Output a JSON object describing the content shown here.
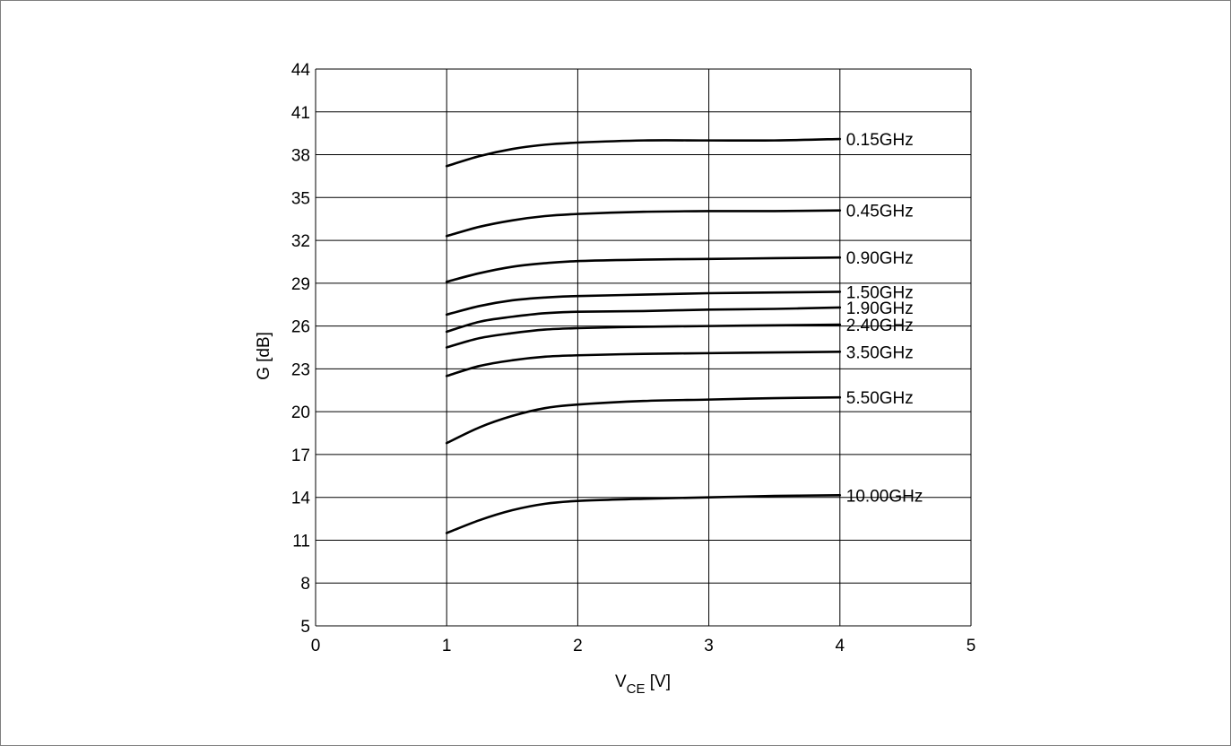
{
  "chart_data": {
    "type": "line",
    "title": "",
    "xlabel_main": "V",
    "xlabel_sub": "CE",
    "xlabel_unit": " [V]",
    "ylabel": "G [dB]",
    "xlim": [
      0,
      5
    ],
    "ylim": [
      5,
      44
    ],
    "xticks": [
      0,
      1,
      2,
      3,
      4,
      5
    ],
    "yticks": [
      5,
      8,
      11,
      14,
      17,
      20,
      23,
      26,
      29,
      32,
      35,
      38,
      41,
      44
    ],
    "grid": true,
    "legend": "none",
    "x": [
      1,
      1.25,
      1.5,
      1.75,
      2,
      2.5,
      3,
      3.5,
      4
    ],
    "series": [
      {
        "name": "0.15GHz",
        "values": [
          37.2,
          37.9,
          38.4,
          38.7,
          38.85,
          39.0,
          39.0,
          39.0,
          39.1
        ]
      },
      {
        "name": "0.45GHz",
        "values": [
          32.3,
          32.95,
          33.4,
          33.7,
          33.85,
          34.0,
          34.05,
          34.05,
          34.1
        ]
      },
      {
        "name": "0.90GHz",
        "values": [
          29.1,
          29.7,
          30.15,
          30.4,
          30.55,
          30.65,
          30.7,
          30.75,
          30.8
        ]
      },
      {
        "name": "1.50GHz",
        "values": [
          26.8,
          27.4,
          27.8,
          28.0,
          28.1,
          28.2,
          28.3,
          28.35,
          28.4
        ]
      },
      {
        "name": "1.90GHz",
        "values": [
          25.6,
          26.3,
          26.65,
          26.9,
          27.0,
          27.05,
          27.15,
          27.2,
          27.3
        ]
      },
      {
        "name": "2.40GHz",
        "values": [
          24.5,
          25.15,
          25.5,
          25.75,
          25.85,
          25.95,
          26.0,
          26.05,
          26.1
        ]
      },
      {
        "name": "3.50GHz",
        "values": [
          22.5,
          23.2,
          23.6,
          23.85,
          23.95,
          24.05,
          24.1,
          24.15,
          24.2
        ]
      },
      {
        "name": "5.50GHz",
        "values": [
          17.8,
          18.9,
          19.7,
          20.25,
          20.5,
          20.75,
          20.85,
          20.95,
          21.0
        ]
      },
      {
        "name": "10.00GHz",
        "values": [
          11.5,
          12.4,
          13.1,
          13.55,
          13.75,
          13.9,
          14.0,
          14.1,
          14.15
        ]
      }
    ]
  }
}
